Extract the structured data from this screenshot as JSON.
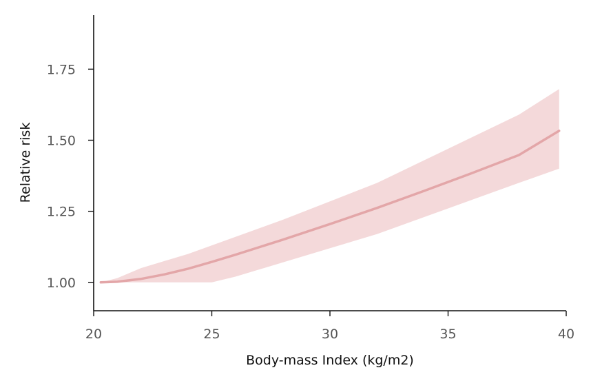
{
  "chart_data": {
    "type": "line",
    "title": "",
    "xlabel": "Body-mass Index (kg/m2)",
    "ylabel": "Relative risk",
    "xlim": [
      20,
      40
    ],
    "ylim": [
      0.9,
      1.94
    ],
    "xticks": [
      "20",
      "25",
      "30",
      "35",
      "40"
    ],
    "yticks": [
      "1.00",
      "1.25",
      "1.50",
      "1.75"
    ],
    "grid": false,
    "legend": "none",
    "colors": {
      "line": "#e3a6a8",
      "band": "#f4d9da",
      "axis": "#111111",
      "tick_text": "#555555"
    },
    "series": [
      {
        "x": [
          20.3,
          21,
          22,
          23,
          24,
          25,
          26,
          28,
          30,
          32,
          34,
          36,
          38,
          39.7
        ],
        "y": [
          1.0,
          1.002,
          1.012,
          1.028,
          1.048,
          1.072,
          1.097,
          1.15,
          1.205,
          1.262,
          1.322,
          1.384,
          1.448,
          1.533
        ],
        "lower": [
          1.0,
          1.0,
          1.0,
          1.0,
          1.0,
          1.0,
          1.02,
          1.07,
          1.12,
          1.17,
          1.23,
          1.29,
          1.35,
          1.4
        ],
        "upper": [
          1.0,
          1.015,
          1.05,
          1.075,
          1.1,
          1.13,
          1.16,
          1.22,
          1.285,
          1.35,
          1.43,
          1.51,
          1.59,
          1.68
        ]
      }
    ]
  }
}
